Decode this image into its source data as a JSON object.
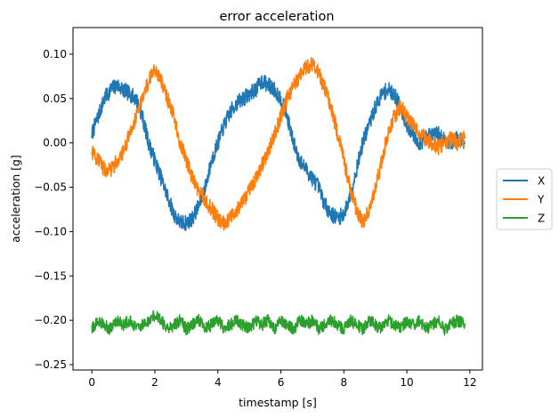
{
  "chart_data": {
    "type": "line",
    "title": "error acceleration",
    "xlabel": "timestamp [s]",
    "ylabel": "acceleration [g]",
    "xlim": [
      -0.6,
      12.4
    ],
    "ylim": [
      -0.256,
      0.13
    ],
    "x_ticks": [
      0,
      2,
      4,
      6,
      8,
      10,
      12
    ],
    "x_tick_labels": [
      "0",
      "2",
      "4",
      "6",
      "8",
      "10",
      "12"
    ],
    "y_ticks": [
      0.1,
      0.05,
      0.0,
      -0.05,
      -0.1,
      -0.15,
      -0.2,
      -0.25
    ],
    "y_tick_labels": [
      "0.10",
      "0.05",
      "0.00",
      "−0.05",
      "−0.10",
      "−0.15",
      "−0.20",
      "−0.25"
    ],
    "grid": false,
    "legend_position": "outside-right",
    "series": [
      {
        "name": "X",
        "color": "#1f77b4",
        "x": [
          0.0,
          0.2,
          0.4,
          0.6,
          0.8,
          1.0,
          1.2,
          1.4,
          1.6,
          1.8,
          2.0,
          2.2,
          2.4,
          2.6,
          2.8,
          3.0,
          3.2,
          3.4,
          3.6,
          3.8,
          4.0,
          4.2,
          4.4,
          4.6,
          4.8,
          5.0,
          5.2,
          5.4,
          5.6,
          5.8,
          6.0,
          6.2,
          6.4,
          6.6,
          6.8,
          7.0,
          7.2,
          7.4,
          7.6,
          7.8,
          8.0,
          8.2,
          8.4,
          8.6,
          8.8,
          9.0,
          9.2,
          9.4,
          9.6,
          9.8,
          10.0,
          10.2,
          10.4,
          10.6,
          10.8,
          11.0,
          11.2,
          11.4,
          11.6,
          11.85
        ],
        "values": [
          0.01,
          0.03,
          0.05,
          0.06,
          0.065,
          0.06,
          0.055,
          0.05,
          0.03,
          0.0,
          -0.02,
          -0.04,
          -0.06,
          -0.08,
          -0.09,
          -0.09,
          -0.085,
          -0.07,
          -0.05,
          -0.02,
          0.0,
          0.02,
          0.035,
          0.045,
          0.05,
          0.055,
          0.06,
          0.07,
          0.065,
          0.06,
          0.05,
          0.03,
          0.0,
          -0.02,
          -0.03,
          -0.04,
          -0.05,
          -0.07,
          -0.08,
          -0.085,
          -0.08,
          -0.06,
          -0.03,
          0.0,
          0.02,
          0.04,
          0.055,
          0.06,
          0.055,
          0.04,
          0.02,
          0.01,
          0.0,
          0.005,
          0.01,
          0.01,
          0.005,
          0.0,
          0.005,
          0.0
        ]
      },
      {
        "name": "Y",
        "color": "#ff7f0e",
        "x": [
          0.0,
          0.2,
          0.4,
          0.6,
          0.8,
          1.0,
          1.2,
          1.4,
          1.6,
          1.8,
          2.0,
          2.2,
          2.4,
          2.6,
          2.8,
          3.0,
          3.2,
          3.4,
          3.6,
          3.8,
          4.0,
          4.2,
          4.4,
          4.6,
          4.8,
          5.0,
          5.2,
          5.4,
          5.6,
          5.8,
          6.0,
          6.2,
          6.4,
          6.6,
          6.8,
          7.0,
          7.2,
          7.4,
          7.6,
          7.8,
          8.0,
          8.2,
          8.4,
          8.6,
          8.8,
          9.0,
          9.2,
          9.4,
          9.6,
          9.8,
          10.0,
          10.2,
          10.4,
          10.6,
          10.8,
          11.0,
          11.2,
          11.4,
          11.6,
          11.85
        ],
        "values": [
          -0.01,
          -0.02,
          -0.03,
          -0.03,
          -0.02,
          -0.01,
          0.01,
          0.03,
          0.05,
          0.07,
          0.085,
          0.07,
          0.05,
          0.03,
          0.0,
          -0.02,
          -0.04,
          -0.055,
          -0.065,
          -0.075,
          -0.085,
          -0.09,
          -0.085,
          -0.075,
          -0.065,
          -0.055,
          -0.04,
          -0.025,
          -0.01,
          0.01,
          0.03,
          0.05,
          0.065,
          0.075,
          0.085,
          0.09,
          0.08,
          0.06,
          0.04,
          0.01,
          -0.02,
          -0.05,
          -0.075,
          -0.09,
          -0.075,
          -0.05,
          -0.02,
          0.01,
          0.03,
          0.04,
          0.03,
          0.02,
          0.01,
          0.005,
          0.0,
          -0.005,
          0.0,
          0.005,
          0.0,
          0.005
        ]
      },
      {
        "name": "Z",
        "color": "#2ca02c",
        "x": [
          0.0,
          0.2,
          0.4,
          0.6,
          0.8,
          1.0,
          1.2,
          1.4,
          1.6,
          1.8,
          2.0,
          2.2,
          2.4,
          2.6,
          2.8,
          3.0,
          3.2,
          3.4,
          3.6,
          3.8,
          4.0,
          4.2,
          4.4,
          4.6,
          4.8,
          5.0,
          5.2,
          5.4,
          5.6,
          5.8,
          6.0,
          6.2,
          6.4,
          6.6,
          6.8,
          7.0,
          7.2,
          7.4,
          7.6,
          7.8,
          8.0,
          8.2,
          8.4,
          8.6,
          8.8,
          9.0,
          9.2,
          9.4,
          9.6,
          9.8,
          10.0,
          10.2,
          10.4,
          10.6,
          10.8,
          11.0,
          11.2,
          11.4,
          11.6,
          11.85
        ],
        "values": [
          -0.21,
          -0.2,
          -0.205,
          -0.21,
          -0.2,
          -0.205,
          -0.2,
          -0.21,
          -0.205,
          -0.2,
          -0.195,
          -0.2,
          -0.21,
          -0.205,
          -0.2,
          -0.21,
          -0.205,
          -0.2,
          -0.21,
          -0.205,
          -0.2,
          -0.21,
          -0.205,
          -0.2,
          -0.205,
          -0.21,
          -0.2,
          -0.205,
          -0.2,
          -0.21,
          -0.2,
          -0.205,
          -0.21,
          -0.2,
          -0.205,
          -0.2,
          -0.21,
          -0.205,
          -0.2,
          -0.205,
          -0.21,
          -0.2,
          -0.205,
          -0.21,
          -0.2,
          -0.205,
          -0.21,
          -0.2,
          -0.205,
          -0.21,
          -0.2,
          -0.205,
          -0.2,
          -0.21,
          -0.205,
          -0.2,
          -0.21,
          -0.205,
          -0.2,
          -0.205
        ]
      }
    ]
  }
}
